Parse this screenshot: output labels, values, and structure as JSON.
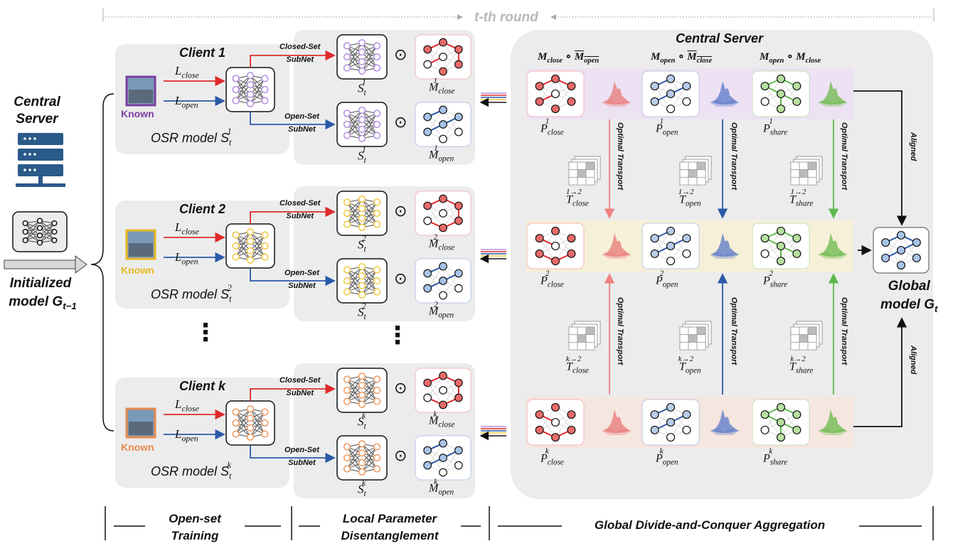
{
  "round_label": "t-th round",
  "left": {
    "server_title": "Central Server",
    "init_line1": "Initialized",
    "init_line2": "model G",
    "init_sub": "t−1"
  },
  "clients": [
    {
      "title": "Client 1",
      "known": "Known",
      "known_color": "#7b3fa0",
      "model_label": "OSR model S",
      "sup": "1",
      "net_color": "#b48ee0"
    },
    {
      "title": "Client 2",
      "known": "Known",
      "known_color": "#e8b820",
      "model_label": "OSR model S",
      "sup": "2",
      "net_color": "#f0c840"
    },
    {
      "title": "Client k",
      "known": "Known",
      "known_color": "#e88a4a",
      "model_label": "OSR model S",
      "sup": "k",
      "net_color": "#f09a60"
    }
  ],
  "loss": {
    "close": "L",
    "close_sub": "close",
    "open": "L",
    "open_sub": "open"
  },
  "subnet": {
    "closed_line1": "Closed-Set",
    "open_line1": "Open-Set",
    "line2": "SubNet"
  },
  "mask": {
    "M": "M",
    "close": "close",
    "open": "open",
    "S": "S",
    "t": "t",
    "odot": "⊙"
  },
  "server": {
    "title": "Central Server",
    "headers": [
      {
        "a": "M",
        "a_sub": "close",
        "b": "M",
        "b_sub": "open",
        "bar": true
      },
      {
        "a": "M",
        "a_sub": "open",
        "b": "M",
        "b_sub": "close",
        "bar": true
      },
      {
        "a": "M",
        "a_sub": "open",
        "b": "M",
        "b_sub": "close",
        "bar": false
      }
    ],
    "P": "P",
    "P_subs": [
      "close",
      "open",
      "share"
    ],
    "ot_label": "Optimal Transport",
    "aligned": "Aligned",
    "T": "T",
    "T_sup_top": "1→2",
    "T_sup_bot": "k→2",
    "global_line1": "Global",
    "global_line2": "model G",
    "global_sub": "t"
  },
  "dots": "⋮",
  "footer": [
    {
      "line1": "Open-set",
      "line2": "Training"
    },
    {
      "line1": "Local Parameter",
      "line2": "Disentanglement"
    },
    {
      "line1": "Global Divide-and-Conquer Aggregation",
      "line2": ""
    }
  ],
  "colors": {
    "red": "#e02a2a",
    "blue": "#2a5aa8",
    "green": "#5cb84a",
    "purple_band": "#ede2f3",
    "yellow_band": "#f7f0d8",
    "pink_band": "#f6e6e0"
  }
}
